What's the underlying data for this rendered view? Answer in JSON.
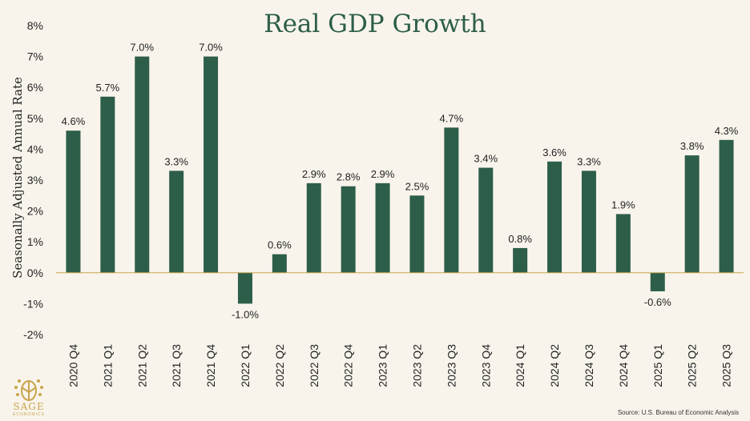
{
  "chart_data": {
    "type": "bar",
    "title": "Real GDP Growth",
    "ylabel": "Seasonally Adjusted Annual Rate",
    "xlabel": "",
    "ylim": [
      -2,
      8
    ],
    "yticks": [
      -2,
      -1,
      0,
      1,
      2,
      3,
      4,
      5,
      6,
      7,
      8
    ],
    "categories": [
      "2020 Q4",
      "2021 Q1",
      "2021 Q2",
      "2021 Q3",
      "2021 Q4",
      "2022 Q1",
      "2022 Q2",
      "2022 Q3",
      "2022 Q4",
      "2023 Q1",
      "2023 Q2",
      "2023 Q3",
      "2023 Q4",
      "2024 Q1",
      "2024 Q2",
      "2024 Q3",
      "2024 Q4",
      "2025 Q1",
      "2025 Q2",
      "2025 Q3"
    ],
    "values": [
      4.6,
      5.7,
      7.0,
      3.3,
      7.0,
      -1.0,
      0.6,
      2.9,
      2.8,
      2.9,
      2.5,
      4.7,
      3.4,
      0.8,
      3.6,
      3.3,
      1.9,
      -0.6,
      3.8,
      4.3
    ],
    "value_unit": "%",
    "grid": false,
    "bar_color": "#2d5e49",
    "zero_line_color": "#c9a44c"
  },
  "logo": {
    "name": "SAGE",
    "sub": "ECONOMICS",
    "color": "#c9a44c"
  },
  "source": "Source: U.S. Bureau of Economic Analysis"
}
